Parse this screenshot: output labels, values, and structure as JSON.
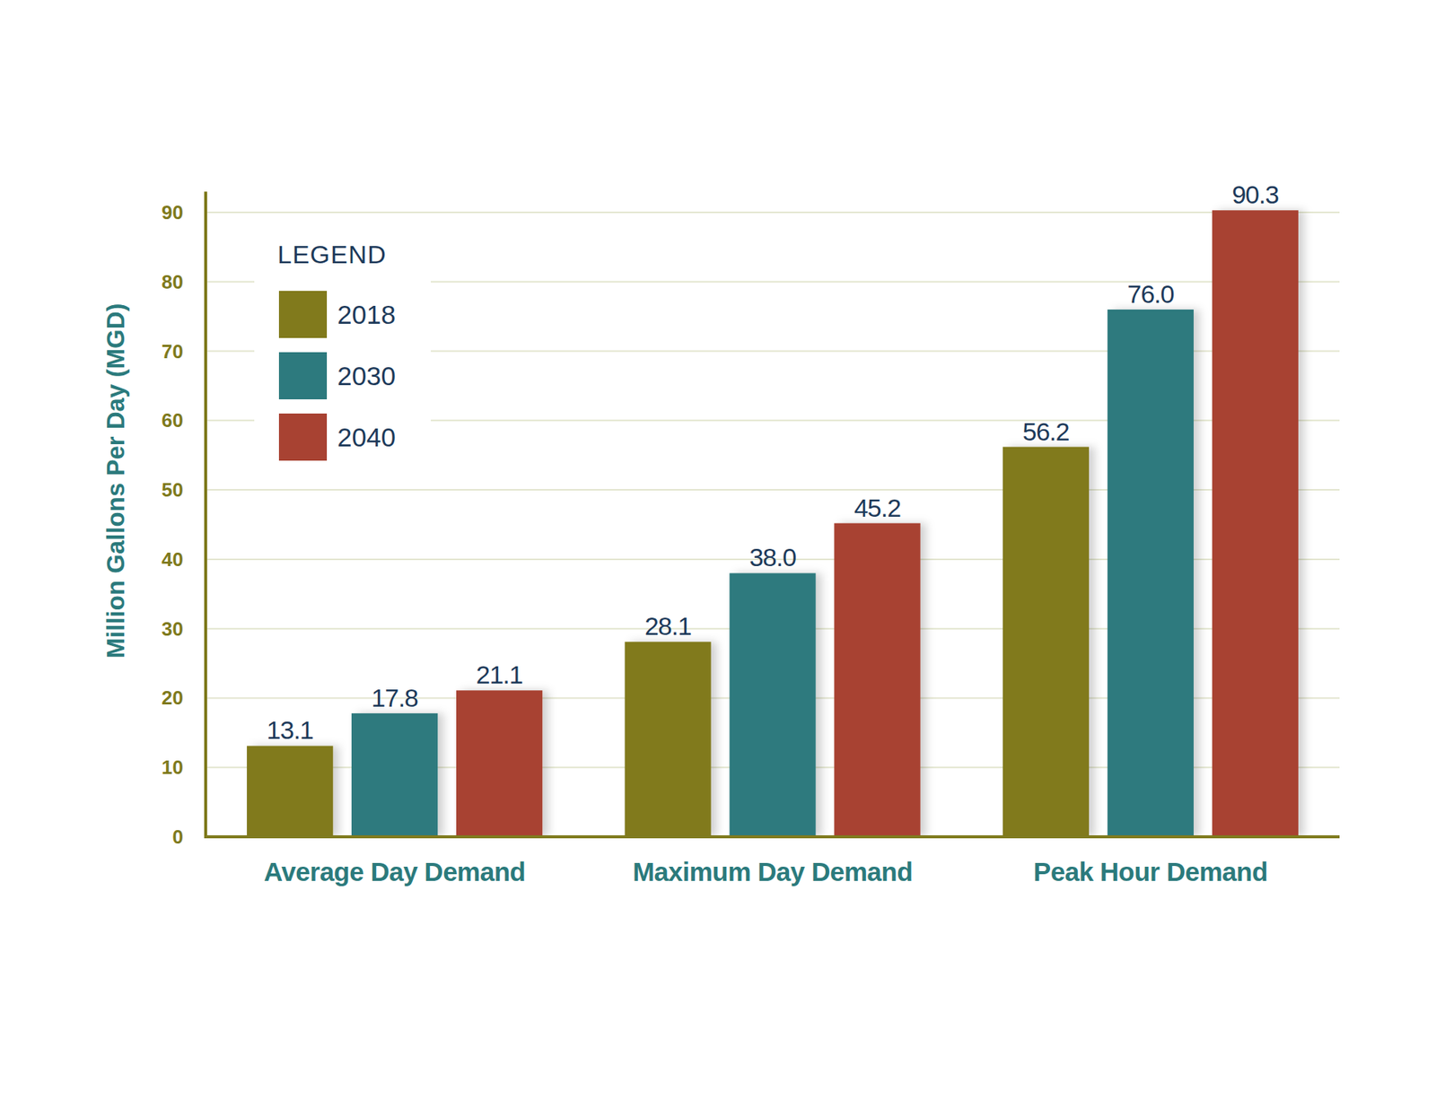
{
  "chart_data": {
    "type": "bar",
    "y_label": "Million Gallons Per Day (MGD)",
    "categories": [
      "Average Day Demand",
      "Maximum Day Demand",
      "Peak Hour Demand"
    ],
    "series": [
      {
        "name": "2018",
        "color": "#817a1c",
        "values": [
          13.1,
          28.1,
          56.2
        ],
        "value_labels": [
          "13.1",
          "28.1",
          "56.2"
        ]
      },
      {
        "name": "2030",
        "color": "#2d7a7e",
        "values": [
          17.8,
          38.0,
          76.0
        ],
        "value_labels": [
          "17.8",
          "38.0",
          "76.0"
        ]
      },
      {
        "name": "2040",
        "color": "#a84232",
        "values": [
          21.1,
          45.2,
          90.3
        ],
        "value_labels": [
          "21.1",
          "45.2",
          "90.3"
        ]
      }
    ],
    "ylim": [
      0,
      93
    ],
    "yticks": [
      0,
      10,
      20,
      30,
      40,
      50,
      60,
      70,
      80,
      90
    ],
    "grid": true,
    "legend": "upper left",
    "legend_title": "LEGEND",
    "data_labels": true
  }
}
